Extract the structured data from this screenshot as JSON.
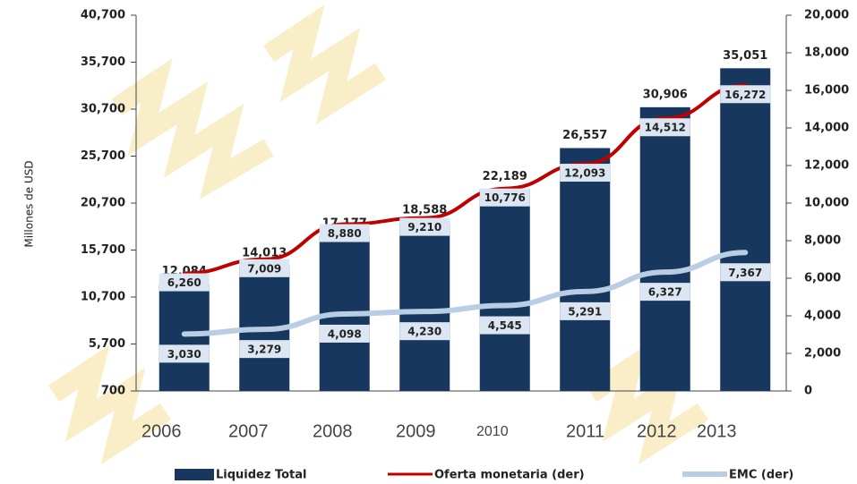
{
  "chart_data": {
    "type": "bar",
    "y_label": "Millones de USD",
    "categories": [
      "2006",
      "2007",
      "2008",
      "2009",
      "2010",
      "2011",
      "2012",
      "2013"
    ],
    "series": [
      {
        "name": "Liquidez Total",
        "type": "bar",
        "color": "#17375e",
        "axis": "y",
        "values": [
          12084,
          14013,
          17177,
          18588,
          22189,
          26557,
          30906,
          35051
        ],
        "value_labels": [
          "12,084",
          "14,013",
          "17,177",
          "18,588",
          "22,189",
          "26,557",
          "30,906",
          "35,051"
        ]
      },
      {
        "name": "Oferta monetaria (der)",
        "type": "line",
        "color": "#c00000",
        "axis": "y2",
        "values": [
          6260,
          7009,
          8880,
          9210,
          10776,
          12093,
          14512,
          16272
        ],
        "value_labels": [
          "6,260",
          "7,009",
          "8,880",
          "9,210",
          "10,776",
          "12,093",
          "14,512",
          "16,272"
        ]
      },
      {
        "name": "EMC (der)",
        "type": "line",
        "color": "#b9cde5",
        "axis": "y2",
        "values": [
          3030,
          3279,
          4098,
          4230,
          4545,
          5291,
          6327,
          7367
        ],
        "value_labels": [
          "3,030",
          "3,279",
          "4,098",
          "4,230",
          "4,545",
          "5,291",
          "6,327",
          "7,367"
        ]
      }
    ],
    "ylim": [
      700,
      40700
    ],
    "yticks": [
      700,
      {
        "value": 5700,
        "label": "5,700"
      },
      {
        "value": 10700,
        "label": "10,700"
      },
      {
        "value": 15700,
        "label": "15,700"
      },
      {
        "value": 20700,
        "label": "20,700"
      },
      {
        "value": 25700,
        "label": "25,700"
      },
      {
        "value": 30700,
        "label": "30,700"
      },
      {
        "value": 35700,
        "label": "35,700"
      },
      {
        "value": 40700,
        "label": "40,700"
      }
    ],
    "y2lim": [
      0,
      20000
    ],
    "y2ticks": [
      0,
      {
        "value": 2000,
        "label": "2,000"
      },
      {
        "value": 4000,
        "label": "4,000"
      },
      {
        "value": 6000,
        "label": "6,000"
      },
      {
        "value": 8000,
        "label": "8,000"
      },
      {
        "value": 10000,
        "label": "10,000"
      },
      {
        "value": 12000,
        "label": "12,000"
      },
      {
        "value": 14000,
        "label": "14,000"
      },
      {
        "value": 16000,
        "label": "16,000"
      },
      {
        "value": 18000,
        "label": "18,000"
      },
      {
        "value": 20000,
        "label": "20,000"
      }
    ],
    "grid": false,
    "legend": "bottom"
  }
}
